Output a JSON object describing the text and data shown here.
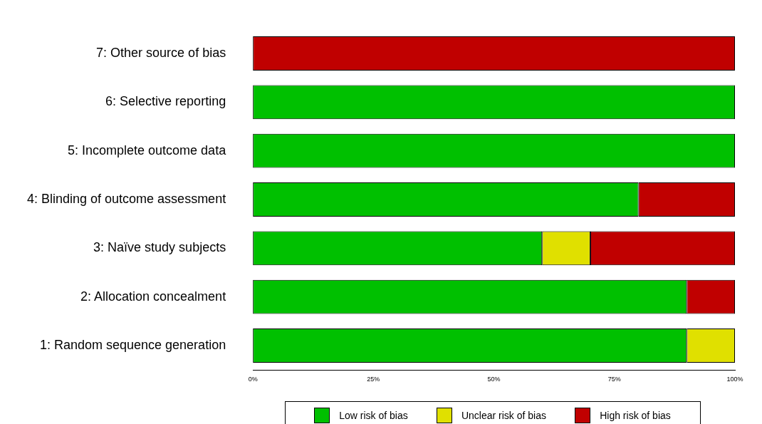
{
  "chart_data": {
    "type": "bar",
    "orientation": "horizontal",
    "stacked": true,
    "categories": [
      "7: Other source of bias",
      "6: Selective reporting",
      "5: Incomplete outcome data",
      "4: Blinding of outcome assessment",
      "3: Naïve study subjects",
      "2: Allocation concealment",
      "1: Random sequence generation"
    ],
    "series": [
      {
        "name": "Low risk of bias",
        "color": "#00c000",
        "values": [
          0,
          100,
          100,
          80,
          60,
          90,
          90
        ]
      },
      {
        "name": "Unclear risk of bias",
        "color": "#e0e000",
        "values": [
          0,
          0,
          0,
          0,
          10,
          0,
          10
        ]
      },
      {
        "name": "High risk of bias",
        "color": "#c00000",
        "values": [
          100,
          0,
          0,
          20,
          30,
          10,
          0
        ]
      }
    ],
    "xlim": [
      0,
      100
    ],
    "xticks": [
      {
        "value": 0,
        "label": "0%"
      },
      {
        "value": 25,
        "label": "25%"
      },
      {
        "value": 50,
        "label": "50%"
      },
      {
        "value": 75,
        "label": "75%"
      },
      {
        "value": 100,
        "label": "100%"
      }
    ],
    "grid": false,
    "legend": "bottom"
  }
}
